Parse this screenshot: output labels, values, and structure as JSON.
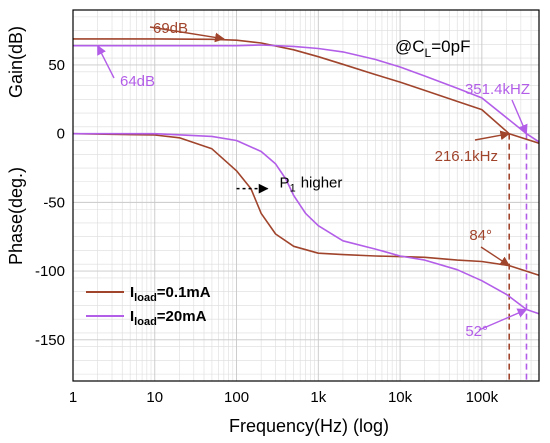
{
  "chart_data": {
    "type": "line",
    "title": "",
    "xlabel": "Frequency(Hz) (log)",
    "ylabel_upper": "Gain(dB)",
    "ylabel_lower": "Phase(deg.)",
    "x_scale": "log",
    "xlim": [
      1,
      500000
    ],
    "ylim": [
      -180,
      90
    ],
    "grid": true,
    "legend_placement": "bottom-left",
    "x_ticks": [
      {
        "value": 1,
        "label": "1"
      },
      {
        "value": 10,
        "label": "10"
      },
      {
        "value": 100,
        "label": "100"
      },
      {
        "value": 1000,
        "label": "1k"
      },
      {
        "value": 10000,
        "label": "10k"
      },
      {
        "value": 100000,
        "label": "100k"
      }
    ],
    "y_ticks": [
      {
        "value": 50,
        "label": "50"
      },
      {
        "value": 0,
        "label": "0"
      },
      {
        "value": -50,
        "label": "-50"
      },
      {
        "value": -100,
        "label": "-100"
      },
      {
        "value": -150,
        "label": "-150"
      }
    ],
    "condition_label": {
      "prefix": "@C",
      "sub": "L",
      "suffix": "=0pF"
    },
    "legend": [
      {
        "prefix": "I",
        "sub": "load",
        "suffix": "=0.1mA",
        "color": "#a0442c"
      },
      {
        "prefix": "I",
        "sub": "load",
        "suffix": "=20mA",
        "color": "#b35ee8"
      }
    ],
    "series": [
      {
        "color": "#a0442c",
        "kind": "gain",
        "x": [
          1,
          10,
          50,
          100,
          200,
          500,
          1000,
          2000,
          5000,
          10000,
          20000,
          50000,
          100000,
          216100,
          500000
        ],
        "y": [
          69,
          69,
          68.7,
          68,
          66,
          61,
          56,
          50.5,
          43,
          37.5,
          31.5,
          23.5,
          17.5,
          0,
          -7
        ]
      },
      {
        "color": "#b35ee8",
        "kind": "gain",
        "x": [
          1,
          10,
          50,
          100,
          200,
          500,
          1000,
          2000,
          5000,
          10000,
          20000,
          50000,
          100000,
          351400,
          500000
        ],
        "y": [
          64,
          64,
          64,
          64,
          64.5,
          63.5,
          62,
          59.5,
          54,
          48.5,
          42,
          33,
          26,
          0,
          -6
        ]
      },
      {
        "color": "#a0442c",
        "kind": "phase",
        "x": [
          1,
          10,
          20,
          50,
          100,
          150,
          200,
          300,
          500,
          1000,
          2000,
          5000,
          10000,
          20000,
          50000,
          100000,
          216100,
          500000
        ],
        "y": [
          0,
          -1,
          -3,
          -11,
          -27,
          -40,
          -58,
          -73,
          -82,
          -87,
          -88,
          -89,
          -89.5,
          -90,
          -92,
          -93,
          -96,
          -103
        ]
      },
      {
        "color": "#b35ee8",
        "kind": "phase",
        "x": [
          1,
          10,
          50,
          100,
          200,
          300,
          400,
          500,
          700,
          1000,
          2000,
          5000,
          10000,
          20000,
          50000,
          100000,
          200000,
          351400,
          500000
        ],
        "y": [
          0,
          0,
          -2,
          -5,
          -13,
          -22,
          -33,
          -45,
          -58,
          -67,
          -78,
          -84,
          -89,
          -92,
          -99,
          -107,
          -117,
          -128,
          -131
        ]
      }
    ],
    "annotations": [
      {
        "text": "69dB",
        "color": "#a0442c",
        "target_x": 70,
        "target_y": 69
      },
      {
        "text": "64dB",
        "color": "#b35ee8",
        "target_x": 2,
        "target_y": 64
      },
      {
        "text": "351.4kHZ",
        "color": "#b35ee8",
        "target_x": 351400,
        "target_y": 0
      },
      {
        "text": "216.1kHz",
        "color": "#a0442c",
        "target_x": 216100,
        "target_y": 0
      },
      {
        "text": "84°",
        "color": "#a0442c",
        "target_x": 216100,
        "target_y": -96
      },
      {
        "text": "52°",
        "color": "#b35ee8",
        "target_x": 351400,
        "target_y": -128
      },
      {
        "text_main": "P",
        "text_sub": "1",
        "text_rest": "higher",
        "color": "#000000",
        "from_x": 100,
        "to_x": 300,
        "at_y": -40
      }
    ],
    "vertical_markers": [
      {
        "x": 216100,
        "color": "#a0442c"
      },
      {
        "x": 351400,
        "color": "#b35ee8"
      }
    ]
  }
}
